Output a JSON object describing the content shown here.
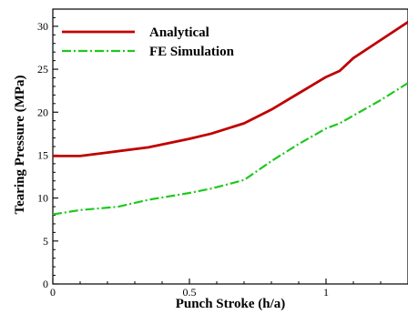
{
  "chart_data": {
    "type": "line",
    "xlabel": "Punch Stroke (h/a)",
    "ylabel": "Tearing Pressure (MPa)",
    "xlim": [
      0,
      1.3
    ],
    "ylim": [
      0,
      32
    ],
    "x_ticks": [
      0,
      0.5,
      1
    ],
    "x_tick_labels": [
      "0",
      "0.5",
      "1"
    ],
    "y_ticks": [
      0,
      5,
      10,
      15,
      20,
      25,
      30
    ],
    "y_tick_labels": [
      "0",
      "5",
      "10",
      "15",
      "20",
      "25",
      "30"
    ],
    "grid": false,
    "legend_position": "top-left",
    "series": [
      {
        "name": "Analytical",
        "color": "#c00000",
        "line_style": "solid",
        "points": [
          [
            0,
            14.9
          ],
          [
            0.1,
            14.9
          ],
          [
            0.2,
            15.3
          ],
          [
            0.35,
            15.9
          ],
          [
            0.5,
            16.9
          ],
          [
            0.58,
            17.5
          ],
          [
            0.7,
            18.7
          ],
          [
            0.8,
            20.3
          ],
          [
            0.9,
            22.2
          ],
          [
            1.0,
            24.1
          ],
          [
            1.05,
            24.8
          ],
          [
            1.1,
            26.3
          ],
          [
            1.2,
            28.4
          ],
          [
            1.3,
            30.5
          ]
        ]
      },
      {
        "name": "FE Simulation",
        "color": "#1ec81e",
        "line_style": "dash-dot",
        "points": [
          [
            0,
            8.1
          ],
          [
            0.1,
            8.6
          ],
          [
            0.24,
            9.0
          ],
          [
            0.35,
            9.8
          ],
          [
            0.5,
            10.6
          ],
          [
            0.58,
            11.1
          ],
          [
            0.7,
            12.1
          ],
          [
            0.8,
            14.3
          ],
          [
            0.9,
            16.3
          ],
          [
            1.0,
            18.1
          ],
          [
            1.05,
            18.7
          ],
          [
            1.1,
            19.6
          ],
          [
            1.2,
            21.4
          ],
          [
            1.3,
            23.4
          ]
        ]
      }
    ]
  }
}
